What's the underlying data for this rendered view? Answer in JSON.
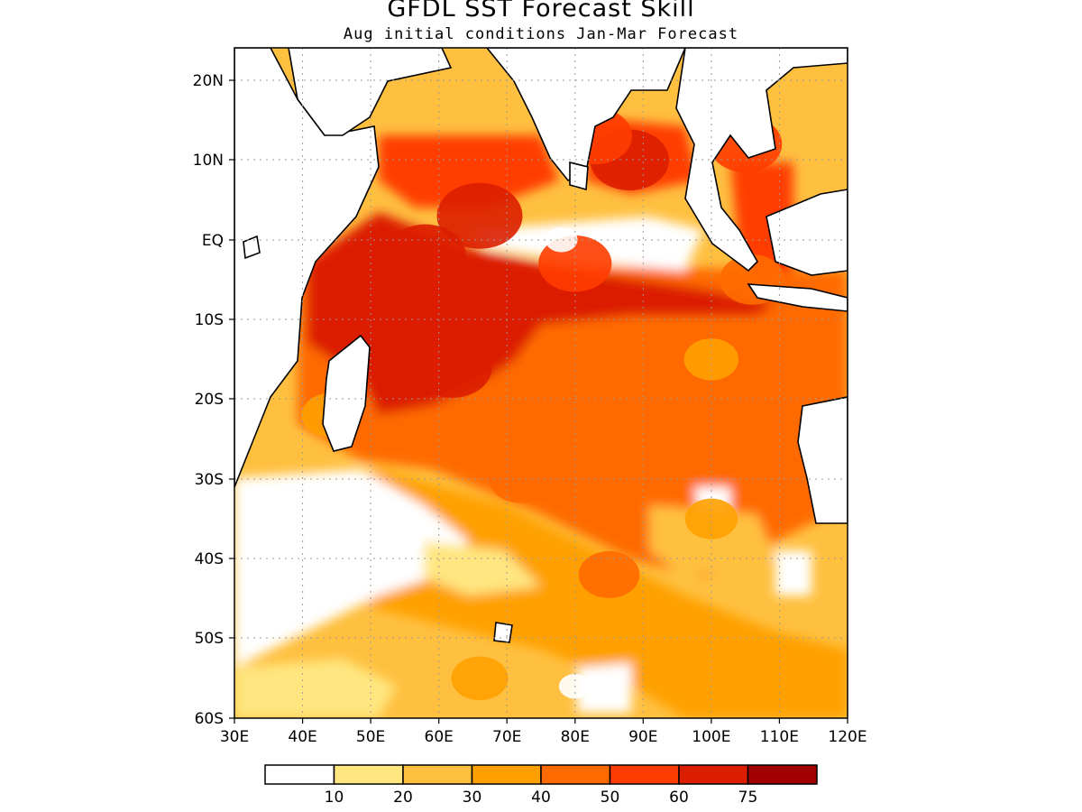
{
  "title": "GFDL SST Forecast Skill",
  "subtitle": "Aug initial conditions  Jan-Mar Forecast",
  "map": {
    "region": "Indian Ocean",
    "lon_range": [
      30,
      120
    ],
    "lat_range": [
      -60,
      24
    ],
    "x_ticks": [
      "30E",
      "40E",
      "50E",
      "60E",
      "70E",
      "80E",
      "90E",
      "100E",
      "110E",
      "120E"
    ],
    "y_ticks": [
      "20N",
      "10N",
      "EQ",
      "10S",
      "20S",
      "30S",
      "40S",
      "50S",
      "60S"
    ],
    "grid": true
  },
  "colorbar": {
    "labels": [
      "10",
      "20",
      "30",
      "40",
      "50",
      "60",
      "75"
    ],
    "colors": [
      "#ffffff",
      "#ffe680",
      "#ffc040",
      "#ffa000",
      "#ff6a00",
      "#ff3c00",
      "#dc1e00",
      "#a00000"
    ]
  },
  "chart_data": {
    "type": "heatmap",
    "title": "GFDL SST Forecast Skill",
    "subtitle": "Aug initial conditions  Jan-Mar Forecast",
    "xlabel": "",
    "ylabel": "",
    "x_ticks": [
      "30E",
      "40E",
      "50E",
      "60E",
      "70E",
      "80E",
      "90E",
      "100E",
      "110E",
      "120E"
    ],
    "y_ticks": [
      "20N",
      "10N",
      "EQ",
      "10S",
      "20S",
      "30S",
      "40S",
      "50S",
      "60S"
    ],
    "levels": [
      10,
      20,
      30,
      40,
      50,
      60,
      75
    ],
    "hotspots": [
      {
        "lon": 66,
        "lat": 3,
        "value": 70
      },
      {
        "lon": 58,
        "lat": -2,
        "value": 65
      },
      {
        "lon": 62,
        "lat": -16,
        "value": 62
      },
      {
        "lon": 88,
        "lat": 10,
        "value": 62
      },
      {
        "lon": 83,
        "lat": 13,
        "value": 55
      },
      {
        "lon": 80,
        "lat": -3,
        "value": 55
      },
      {
        "lon": 78,
        "lat": -15,
        "value": 48
      },
      {
        "lon": 88,
        "lat": -23,
        "value": 45
      },
      {
        "lon": 72,
        "lat": -30,
        "value": 42
      },
      {
        "lon": 85,
        "lat": -42,
        "value": 40
      },
      {
        "lon": 105,
        "lat": 12,
        "value": 55
      },
      {
        "lon": 106,
        "lat": -5,
        "value": 45
      },
      {
        "lon": 100,
        "lat": -15,
        "value": 32
      },
      {
        "lon": 100,
        "lat": -35,
        "value": 30
      },
      {
        "lon": 98,
        "lat": -52,
        "value": 35
      },
      {
        "lon": 66,
        "lat": -55,
        "value": 35
      },
      {
        "lon": 44,
        "lat": -22,
        "value": 35
      }
    ],
    "coldspots": [
      {
        "lon": 78,
        "lat": 0,
        "value": 5
      },
      {
        "lon": 38,
        "lat": -40,
        "value": 3
      },
      {
        "lon": 55,
        "lat": -38,
        "value": 5
      },
      {
        "lon": 80,
        "lat": -56,
        "value": 5
      }
    ]
  }
}
